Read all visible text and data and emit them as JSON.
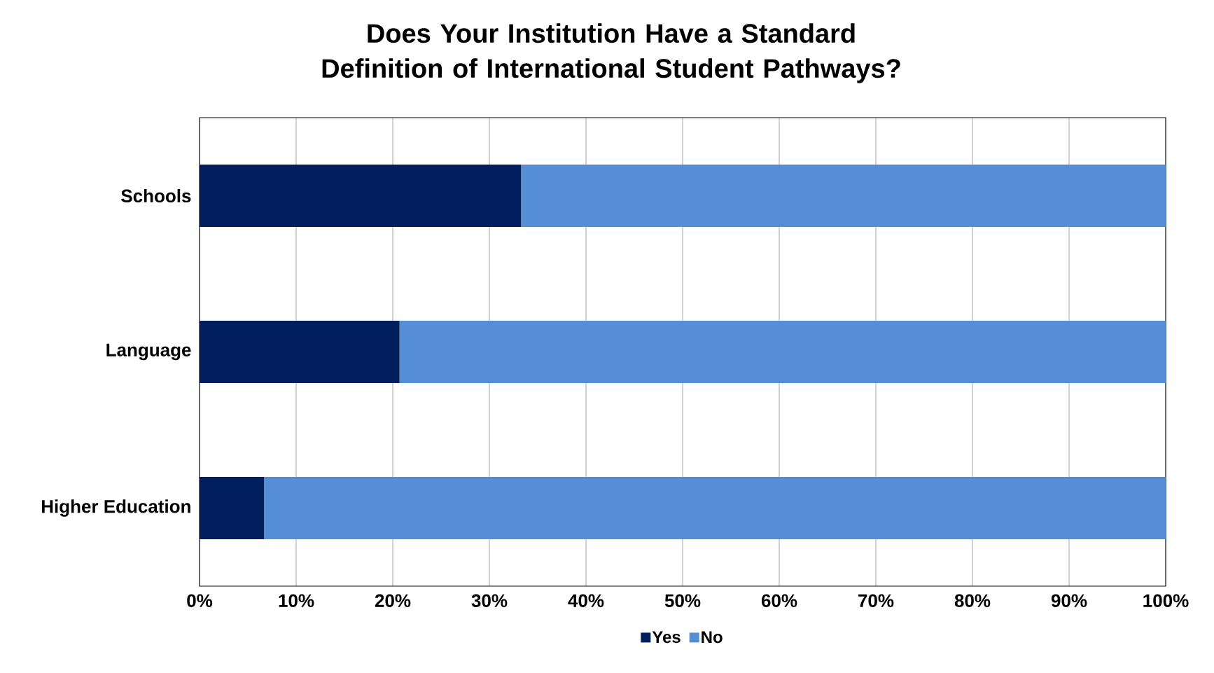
{
  "chart_data": {
    "type": "bar",
    "orientation": "horizontal",
    "stacked": true,
    "title": "Does Your Institution Have a Standard Definition of International Student Pathways?",
    "categories": [
      "Schools",
      "Language",
      "Higher Education"
    ],
    "series": [
      {
        "name": "Yes",
        "color": "#001f5c",
        "values": [
          33.3,
          20.7,
          6.7
        ]
      },
      {
        "name": "No",
        "color": "#558ed5",
        "values": [
          66.7,
          79.3,
          93.3
        ]
      }
    ],
    "xlim": [
      0,
      100
    ],
    "xticks": [
      {
        "value": 0,
        "label": "0%"
      },
      {
        "value": 10,
        "label": "10%"
      },
      {
        "value": 20,
        "label": "20%"
      },
      {
        "value": 30,
        "label": "30%"
      },
      {
        "value": 40,
        "label": "40%"
      },
      {
        "value": 50,
        "label": "50%"
      },
      {
        "value": 60,
        "label": "60%"
      },
      {
        "value": 70,
        "label": "70%"
      },
      {
        "value": 80,
        "label": "80%"
      },
      {
        "value": 90,
        "label": "90%"
      },
      {
        "value": 100,
        "label": "100%"
      }
    ],
    "grid": "x",
    "legend": "bottom"
  }
}
